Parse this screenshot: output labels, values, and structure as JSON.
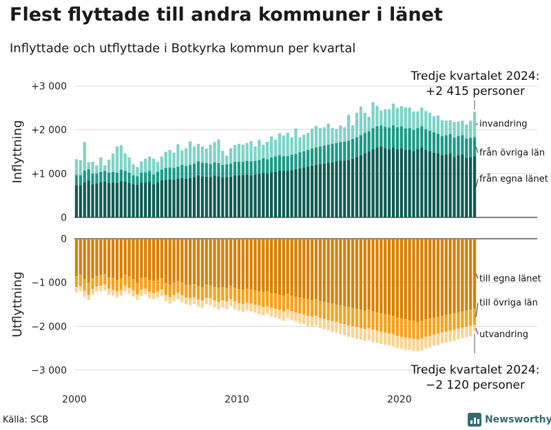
{
  "title": "Flest flyttade till andra kommuner i länet",
  "subtitle": "Inflyttade och utflyttade i Botkyrka kommun per kvartal",
  "source": "Källa: SCB",
  "brand": {
    "name": "Newsworthy",
    "color": "#2f6d73"
  },
  "chart_data": {
    "type": "bar",
    "stacked": true,
    "x_start": "2000 Q1",
    "x_end": "2024 Q3",
    "x_ticks": [
      "2000",
      "2010",
      "2020"
    ],
    "panels": [
      {
        "id": "in",
        "ylabel": "Inflyttning",
        "ylim": [
          0,
          3000
        ],
        "yticks": [
          {
            "v": 0,
            "l": "0"
          },
          {
            "v": 1000,
            "l": "+1 000"
          },
          {
            "v": 2000,
            "l": "+2 000"
          },
          {
            "v": 3000,
            "l": "+3 000"
          }
        ],
        "annotation": [
          "Tredje kvartalet 2024:",
          "+2 415 personer"
        ],
        "series": [
          {
            "name": "från egna länet",
            "color": "#0f5b52",
            "values": [
              740,
              730,
              800,
              840,
              760,
              780,
              800,
              820,
              790,
              800,
              790,
              830,
              820,
              790,
              760,
              750,
              800,
              800,
              820,
              760,
              800,
              840,
              860,
              870,
              860,
              880,
              900,
              880,
              900,
              920,
              960,
              940,
              930,
              920,
              950,
              940,
              910,
              920,
              930,
              960,
              960,
              970,
              980,
              960,
              980,
              990,
              1020,
              1000,
              1030,
              1040,
              1070,
              1060,
              1060,
              1080,
              1100,
              1120,
              1140,
              1160,
              1180,
              1200,
              1220,
              1230,
              1250,
              1260,
              1280,
              1300,
              1300,
              1310,
              1340,
              1380,
              1420,
              1460,
              1500,
              1560,
              1600,
              1620,
              1580,
              1560,
              1600,
              1560,
              1580,
              1540,
              1550,
              1520,
              1560,
              1600,
              1540,
              1520,
              1480,
              1460,
              1420,
              1440,
              1460,
              1380,
              1420,
              1440,
              1360,
              1380,
              1390
            ]
          },
          {
            "name": "från övriga län",
            "color": "#1a9985",
            "values": [
              230,
              240,
              270,
              260,
              240,
              220,
              240,
              240,
              230,
              240,
              230,
              260,
              240,
              230,
              200,
              190,
              220,
              230,
              240,
              220,
              240,
              250,
              270,
              270,
              270,
              280,
              300,
              290,
              300,
              310,
              320,
              310,
              310,
              300,
              310,
              300,
              290,
              290,
              300,
              310,
              310,
              300,
              310,
              320,
              310,
              320,
              330,
              330,
              340,
              350,
              350,
              340,
              340,
              350,
              350,
              370,
              370,
              380,
              390,
              400,
              400,
              410,
              410,
              420,
              420,
              420,
              430,
              440,
              450,
              450,
              460,
              470,
              470,
              480,
              480,
              480,
              490,
              490,
              500,
              500,
              500,
              490,
              490,
              480,
              480,
              480,
              470,
              460,
              460,
              450,
              440,
              440,
              440,
              440,
              440,
              440,
              440,
              440,
              440
            ]
          },
          {
            "name": "invandring",
            "color": "#7dd3c6",
            "values": [
              360,
              340,
              650,
              160,
              270,
              190,
              330,
              130,
              300,
              420,
              600,
              560,
              400,
              350,
              250,
              210,
              260,
              310,
              330,
              360,
              230,
              300,
              370,
              400,
              350,
              510,
              330,
              410,
              540,
              390,
              400,
              370,
              330,
              440,
              460,
              540,
              320,
              200,
              350,
              380,
              410,
              390,
              410,
              460,
              330,
              460,
              310,
              400,
              480,
              390,
              500,
              470,
              530,
              400,
              580,
              340,
              380,
              390,
              460,
              490,
              420,
              420,
              480,
              360,
              320,
              380,
              330,
              590,
              310,
              560,
              650,
              460,
              330,
              590,
              470,
              340,
              400,
              420,
              500,
              440,
              460,
              480,
              470,
              420,
              380,
              430,
              420,
              410,
              370,
              420,
              360,
              330,
              320,
              360,
              330,
              330,
              320,
              390,
              585
            ]
          }
        ]
      },
      {
        "id": "out",
        "ylabel": "Utflyttning",
        "ylim": [
          -3000,
          0
        ],
        "yticks": [
          {
            "v": 0,
            "l": "0"
          },
          {
            "v": -1000,
            "l": "−1 000"
          },
          {
            "v": -2000,
            "l": "−2 000"
          },
          {
            "v": -3000,
            "l": "−3 000"
          }
        ],
        "annotation": [
          "Tredje kvartalet 2024:",
          "−2 120 personer"
        ],
        "series": [
          {
            "name": "till egna länet",
            "color": "#d87f00",
            "values": [
              -850,
              -820,
              -920,
              -1000,
              -900,
              -850,
              -820,
              -800,
              -880,
              -900,
              -940,
              -900,
              -820,
              -860,
              -920,
              -1000,
              -900,
              -880,
              -940,
              -960,
              -940,
              -900,
              -1000,
              -1050,
              -1000,
              -960,
              -1000,
              -1050,
              -1060,
              -1040,
              -1080,
              -1100,
              -1050,
              -1060,
              -1100,
              -1120,
              -1100,
              -1120,
              -1080,
              -1120,
              -1150,
              -1160,
              -1140,
              -1160,
              -1180,
              -1200,
              -1220,
              -1200,
              -1240,
              -1250,
              -1280,
              -1300,
              -1260,
              -1300,
              -1320,
              -1340,
              -1360,
              -1380,
              -1400,
              -1380,
              -1420,
              -1440,
              -1460,
              -1480,
              -1500,
              -1520,
              -1540,
              -1560,
              -1580,
              -1600,
              -1620,
              -1640,
              -1620,
              -1660,
              -1680,
              -1700,
              -1720,
              -1740,
              -1760,
              -1800,
              -1820,
              -1840,
              -1860,
              -1880,
              -1900,
              -1880,
              -1840,
              -1820,
              -1800,
              -1780,
              -1760,
              -1740,
              -1720,
              -1700,
              -1680,
              -1660,
              -1640,
              -1620,
              -1600
            ]
          },
          {
            "name": "till övriga län",
            "color": "#f7a11a",
            "values": [
              -250,
              -260,
              -270,
              -280,
              -250,
              -240,
              -250,
              -250,
              -260,
              -270,
              -260,
              -270,
              -250,
              -260,
              -260,
              -270,
              -260,
              -260,
              -270,
              -280,
              -270,
              -260,
              -280,
              -290,
              -280,
              -270,
              -290,
              -290,
              -300,
              -300,
              -310,
              -310,
              -300,
              -300,
              -310,
              -320,
              -310,
              -310,
              -300,
              -310,
              -320,
              -330,
              -320,
              -320,
              -330,
              -330,
              -340,
              -340,
              -340,
              -350,
              -350,
              -360,
              -350,
              -350,
              -360,
              -370,
              -370,
              -380,
              -380,
              -380,
              -390,
              -390,
              -400,
              -400,
              -400,
              -410,
              -410,
              -420,
              -420,
              -420,
              -420,
              -420,
              -420,
              -420,
              -420,
              -420,
              -420,
              -420,
              -420,
              -420,
              -420,
              -420,
              -410,
              -410,
              -400,
              -400,
              -400,
              -400,
              -390,
              -390,
              -380,
              -380,
              -380,
              -380,
              -370,
              -370,
              -370,
              -370,
              -370
            ]
          },
          {
            "name": "utvandring",
            "color": "#f8d493",
            "values": [
              -130,
              -120,
              -140,
              -120,
              -130,
              -120,
              -130,
              -130,
              -140,
              -130,
              -140,
              -130,
              -130,
              -140,
              -140,
              -130,
              -140,
              -130,
              -150,
              -140,
              -140,
              -150,
              -150,
              -140,
              -150,
              -150,
              -160,
              -150,
              -160,
              -150,
              -160,
              -160,
              -150,
              -160,
              -160,
              -170,
              -160,
              -170,
              -160,
              -170,
              -170,
              -180,
              -170,
              -180,
              -180,
              -190,
              -190,
              -180,
              -200,
              -200,
              -200,
              -210,
              -200,
              -210,
              -210,
              -220,
              -220,
              -230,
              -230,
              -220,
              -230,
              -240,
              -240,
              -250,
              -250,
              -250,
              -260,
              -260,
              -260,
              -270,
              -270,
              -270,
              -270,
              -280,
              -280,
              -280,
              -280,
              -280,
              -280,
              -280,
              -280,
              -280,
              -270,
              -270,
              -270,
              -270,
              -260,
              -260,
              -260,
              -260,
              -250,
              -250,
              -250,
              -250,
              -250,
              -240,
              -240,
              -240,
              -150
            ]
          }
        ]
      }
    ]
  }
}
